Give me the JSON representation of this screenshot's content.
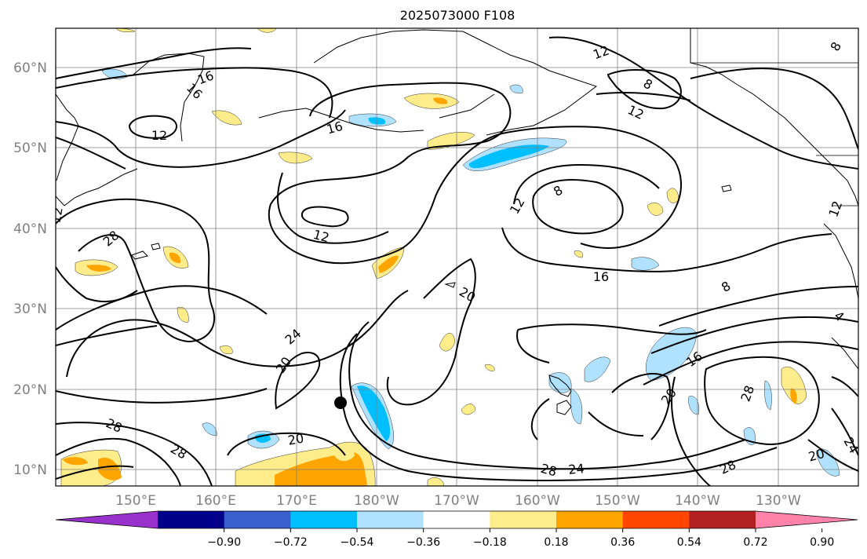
{
  "title": "2025073000 F108",
  "lat_labels": [
    "60°N",
    "50°N",
    "40°N",
    "30°N",
    "20°N",
    "10°N"
  ],
  "lon_labels": [
    "150°E",
    "160°E",
    "170°E",
    "180°W",
    "170°W",
    "160°W",
    "150°W",
    "140°W",
    "130°W"
  ],
  "colorbar": {
    "colors": [
      "#9932cc",
      "#00008b",
      "#3a5fcd",
      "#00bfff",
      "#b0e2ff",
      "#ffffff",
      "#ffec8b",
      "#ffa500",
      "#ff4500",
      "#b22222",
      "#ff82ab"
    ],
    "tick_labels": [
      "−0.90",
      "−0.72",
      "−0.54",
      "−0.36",
      "−0.18",
      "0.18",
      "0.36",
      "0.54",
      "0.72",
      "0.90"
    ]
  },
  "contour_labels": [
    "16",
    "16",
    "12",
    "16",
    "12",
    "12",
    "8",
    "12",
    "28",
    "12",
    "12",
    "8",
    "8",
    "16",
    "20",
    "24",
    "20",
    "8",
    "4",
    "28",
    "16",
    "20",
    "28",
    "20",
    "28",
    "28",
    "24",
    "28",
    "20",
    "24",
    "12"
  ]
}
